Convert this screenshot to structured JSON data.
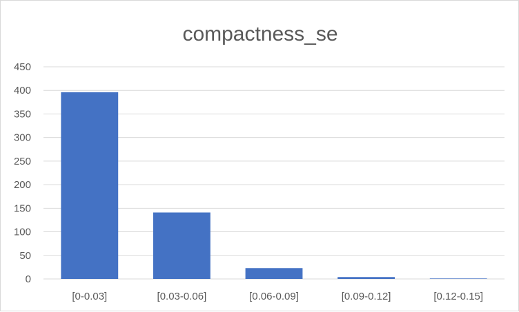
{
  "chart_data": {
    "type": "bar",
    "title": "compactness_se",
    "xlabel": "",
    "ylabel": "",
    "categories": [
      "[0-0.03]",
      "[0.03-0.06]",
      "[0.06-0.09]",
      "[0.09-0.12]",
      "[0.12-0.15]"
    ],
    "values": [
      396,
      141,
      23,
      4,
      1
    ],
    "ylim": [
      0,
      450
    ],
    "yticks": [
      0,
      50,
      100,
      150,
      200,
      250,
      300,
      350,
      400,
      450
    ],
    "grid": true,
    "legend": "none",
    "bar_color": "#4472c4",
    "grid_color": "#d9d9d9"
  }
}
